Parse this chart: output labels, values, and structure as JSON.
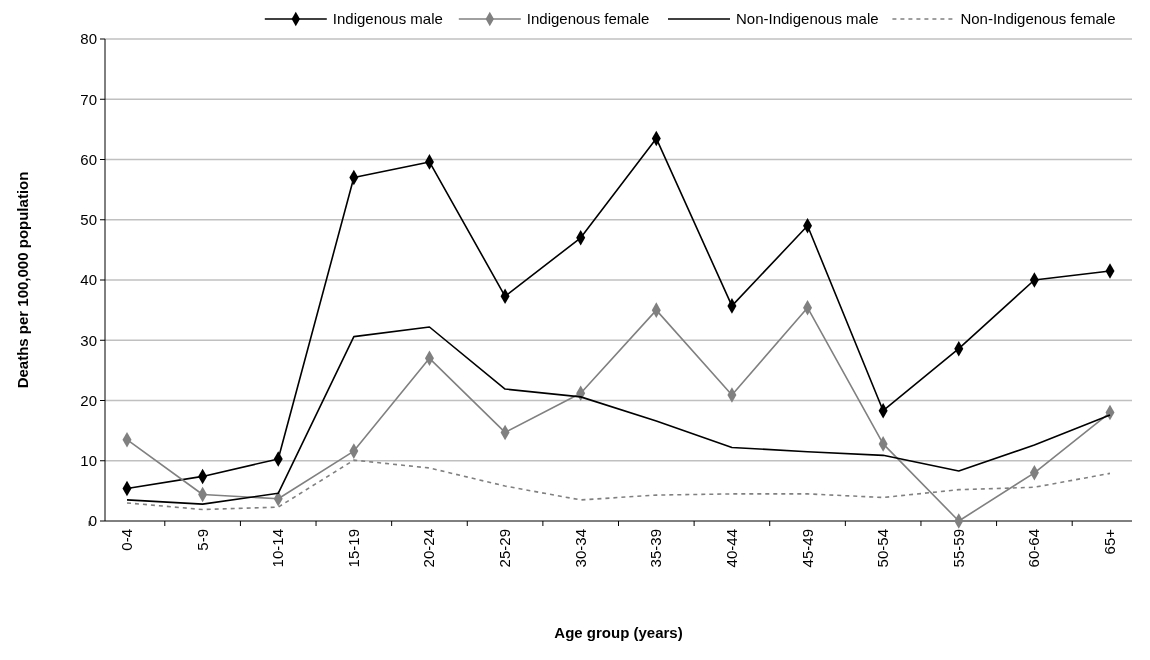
{
  "chart_data": {
    "type": "line",
    "xlabel": "Age group (years)",
    "ylabel": "Deaths per 100,000 population",
    "categories": [
      "0-4",
      "5-9",
      "10-14",
      "15-19",
      "20-24",
      "25-29",
      "30-34",
      "35-39",
      "40-44",
      "45-49",
      "50-54",
      "55-59",
      "60-64",
      "65+"
    ],
    "series": [
      {
        "name": "Indigenous male",
        "color": "#000000",
        "marker": "diamond",
        "line_style": "solid",
        "values": [
          5.4,
          7.4,
          10.3,
          57,
          59.6,
          37.3,
          47,
          63.5,
          35.7,
          49,
          18.3,
          28.6,
          40,
          41.5
        ]
      },
      {
        "name": "Indigenous female",
        "color": "#808080",
        "marker": "diamond",
        "line_style": "solid",
        "values": [
          13.5,
          4.4,
          3.7,
          11.6,
          27,
          14.7,
          21.2,
          35,
          20.9,
          35.4,
          12.8,
          0,
          8,
          18
        ]
      },
      {
        "name": "Non-Indigenous male",
        "color": "#000000",
        "marker": "none",
        "line_style": "solid",
        "values": [
          3.5,
          2.8,
          4.6,
          30.6,
          32.2,
          21.9,
          20.6,
          16.6,
          12.2,
          11.5,
          10.9,
          8.3,
          12.6,
          17.6
        ]
      },
      {
        "name": "Non-Indigenous female",
        "color": "#808080",
        "marker": "none",
        "line_style": "dashed",
        "values": [
          3,
          1.9,
          2.3,
          10.1,
          8.8,
          5.8,
          3.5,
          4.3,
          4.5,
          4.5,
          3.9,
          5.2,
          5.6,
          7.9
        ]
      }
    ],
    "ylim": [
      0,
      80
    ],
    "yticks": [
      0,
      10,
      20,
      30,
      40,
      50,
      60,
      70,
      80
    ],
    "grid": "y",
    "legend": "top"
  }
}
